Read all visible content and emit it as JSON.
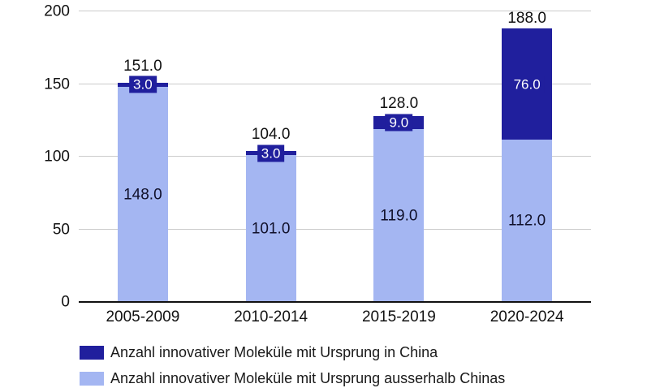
{
  "chart_data": {
    "type": "bar",
    "stacked": true,
    "title": "",
    "categories": [
      "2005-2009",
      "2010-2014",
      "2015-2019",
      "2020-2024"
    ],
    "series": [
      {
        "name": "Anzahl innovativer Moleküle mit Ursprung in China",
        "color": "#201f9d",
        "label_text_color": "#ffffff",
        "values": [
          3.0,
          3.0,
          9.0,
          76.0
        ]
      },
      {
        "name": "Anzahl innovativer Moleküle mit Ursprung ausserhalb Chinas",
        "color": "#a4b6f2",
        "label_text_color": "#10102a",
        "values": [
          148.0,
          101.0,
          119.0,
          112.0
        ]
      }
    ],
    "totals": [
      151.0,
      104.0,
      128.0,
      188.0
    ],
    "value_label_format": "one_decimal",
    "yticks": [
      0,
      50,
      100,
      150,
      200
    ],
    "ylim": [
      0,
      200
    ],
    "xlabel": "",
    "ylabel": "",
    "grid": true,
    "gridline_color": "#cbcbcb",
    "axis_line_color": "#111111",
    "legend_position": "bottom-left",
    "background_color": "#ffffff"
  }
}
